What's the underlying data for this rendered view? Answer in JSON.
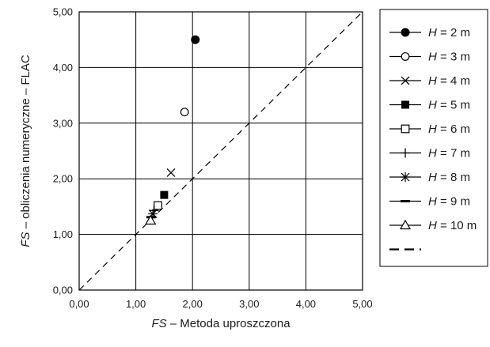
{
  "chart_data": {
    "type": "scatter",
    "xlim": [
      0,
      5
    ],
    "ylim": [
      0,
      5
    ],
    "x_ticks": [
      "0,00",
      "1,00",
      "2,00",
      "3,00",
      "4,00",
      "5,00"
    ],
    "y_ticks": [
      "0,00",
      "1,00",
      "2,00",
      "3,00",
      "4,00",
      "5,00"
    ],
    "xlabel": {
      "italic": "FS",
      "rest": " – Metoda uproszczona"
    },
    "ylabel": {
      "italic": "FS",
      "rest": " – obliczenia numeryczne – FLAC"
    },
    "grid": true,
    "legend_position": "right",
    "series": [
      {
        "name_var": "H",
        "name_rest": " = 2 m",
        "marker": "filled-circle",
        "x": 2.05,
        "y": 4.5
      },
      {
        "name_var": "H",
        "name_rest": " = 3 m",
        "marker": "open-circle",
        "x": 1.86,
        "y": 3.2
      },
      {
        "name_var": "H",
        "name_rest": " = 4 m",
        "marker": "x-cross",
        "x": 1.62,
        "y": 2.11
      },
      {
        "name_var": "H",
        "name_rest": " = 5 m",
        "marker": "filled-square",
        "x": 1.5,
        "y": 1.71
      },
      {
        "name_var": "H",
        "name_rest": " = 6 m",
        "marker": "open-square",
        "x": 1.39,
        "y": 1.52
      },
      {
        "name_var": "H",
        "name_rest": " = 7 m",
        "marker": "plus",
        "x": 1.32,
        "y": 1.43
      },
      {
        "name_var": "H",
        "name_rest": " = 8 m",
        "marker": "asterisk",
        "x": 1.3,
        "y": 1.37
      },
      {
        "name_var": "H",
        "name_rest": " = 9 m",
        "marker": "dash",
        "x": 1.27,
        "y": 1.31
      },
      {
        "name_var": "H",
        "name_rest": " = 10 m",
        "marker": "open-triangle",
        "x": 1.26,
        "y": 1.25
      },
      {
        "name_var": "",
        "name_rest": "",
        "marker": "dashed-line",
        "line": "y = x",
        "x": [
          0,
          5
        ],
        "y": [
          0,
          5
        ]
      }
    ]
  }
}
